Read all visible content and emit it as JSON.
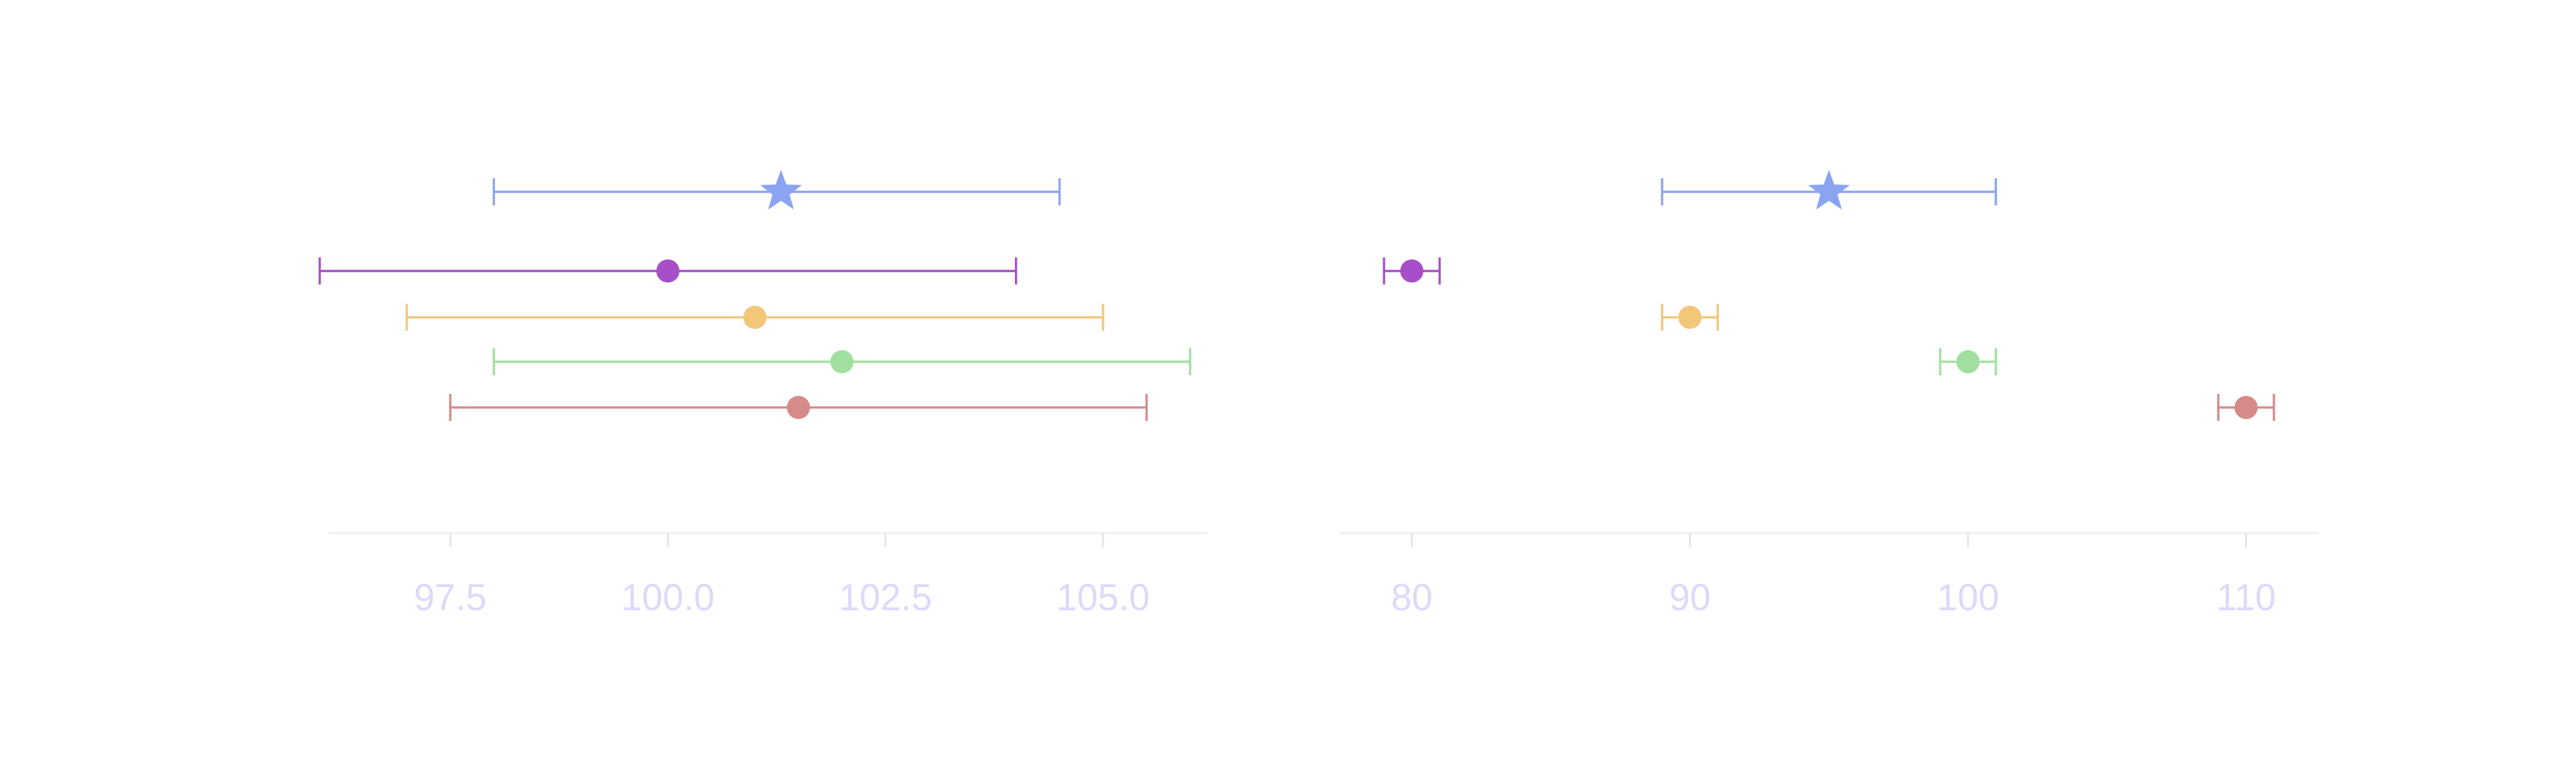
{
  "colors": {
    "axis": "#f0f0f0",
    "tick": "#e4e4e4",
    "tick_label": "#ded9fb",
    "pooled": "#8aa4f2",
    "series": [
      "#a64fc8",
      "#f2c77a",
      "#a1df9e",
      "#d68a8a"
    ]
  },
  "chart_data": [
    {
      "type": "forest",
      "title": "",
      "xlabel": "",
      "ylabel": "",
      "xlim": [
        96.1,
        106.2
      ],
      "xticks": [
        97.5,
        100.0,
        102.5,
        105.0
      ],
      "xtick_labels": [
        "97.5",
        "100.0",
        "102.5",
        "105.0"
      ],
      "grid": false,
      "legend": "none",
      "pooled": {
        "marker": "star",
        "estimate": 101.3,
        "lower": 98.0,
        "upper": 104.5
      },
      "studies": [
        {
          "marker": "circle",
          "estimate": 100.0,
          "lower": 96.0,
          "upper": 104.0
        },
        {
          "marker": "circle",
          "estimate": 101.0,
          "lower": 97.0,
          "upper": 105.0
        },
        {
          "marker": "circle",
          "estimate": 102.0,
          "lower": 98.0,
          "upper": 106.0
        },
        {
          "marker": "circle",
          "estimate": 101.5,
          "lower": 97.5,
          "upper": 105.5
        }
      ]
    },
    {
      "type": "forest",
      "title": "",
      "xlabel": "",
      "ylabel": "",
      "xlim": [
        77.4,
        112.6
      ],
      "xticks": [
        80,
        90,
        100,
        110
      ],
      "xtick_labels": [
        "80",
        "90",
        "100",
        "110"
      ],
      "grid": false,
      "legend": "none",
      "pooled": {
        "marker": "star",
        "estimate": 95.0,
        "lower": 89.0,
        "upper": 101.0
      },
      "studies": [
        {
          "marker": "circle",
          "estimate": 80.0,
          "lower": 79.0,
          "upper": 81.0
        },
        {
          "marker": "circle",
          "estimate": 90.0,
          "lower": 89.0,
          "upper": 91.0
        },
        {
          "marker": "circle",
          "estimate": 100.0,
          "lower": 99.0,
          "upper": 101.0
        },
        {
          "marker": "circle",
          "estimate": 110.0,
          "lower": 109.0,
          "upper": 111.0
        }
      ]
    }
  ]
}
